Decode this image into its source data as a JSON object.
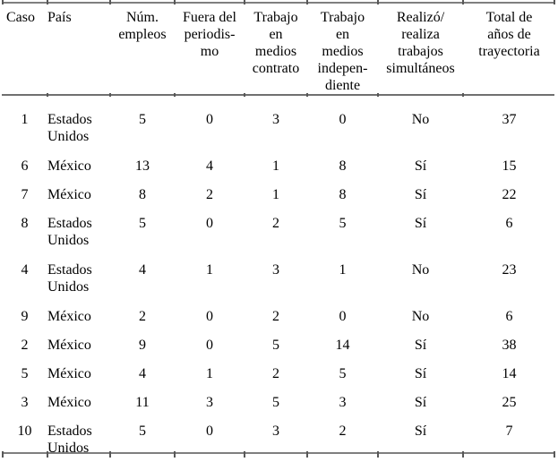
{
  "table": {
    "columns": [
      {
        "id": "caso",
        "label": "Caso"
      },
      {
        "id": "pais",
        "label": "País"
      },
      {
        "id": "num",
        "label": "Núm.\nempleos"
      },
      {
        "id": "fuera",
        "label": "Fuera del\nperiodis-\nmo"
      },
      {
        "id": "contrato",
        "label": "Trabajo\nen\nmedios\ncontrato"
      },
      {
        "id": "indep",
        "label": "Trabajo\nen\nmedios\nindepen-\ndiente"
      },
      {
        "id": "simult",
        "label": "Realizó/\nrealiza\ntrabajos\nsimultáneos"
      },
      {
        "id": "total",
        "label": "Total de\naños de\ntrayectoria"
      }
    ],
    "rows": [
      {
        "caso": "1",
        "pais": "Estados\nUnidos",
        "num": "5",
        "fuera": "0",
        "contrato": "3",
        "indep": "0",
        "simult": "No",
        "total": "37"
      },
      {
        "caso": "6",
        "pais": "México",
        "num": "13",
        "fuera": "4",
        "contrato": "1",
        "indep": "8",
        "simult": "Sí",
        "total": "15"
      },
      {
        "caso": "7",
        "pais": "México",
        "num": "8",
        "fuera": "2",
        "contrato": "1",
        "indep": "8",
        "simult": "Sí",
        "total": "22"
      },
      {
        "caso": "8",
        "pais": "Estados\nUnidos",
        "num": "5",
        "fuera": "0",
        "contrato": "2",
        "indep": "5",
        "simult": "Sí",
        "total": "6"
      },
      {
        "caso": "4",
        "pais": "Estados\nUnidos",
        "num": "4",
        "fuera": "1",
        "contrato": "3",
        "indep": "1",
        "simult": "No",
        "total": "23"
      },
      {
        "caso": "9",
        "pais": "México",
        "num": "2",
        "fuera": "0",
        "contrato": "2",
        "indep": "0",
        "simult": "No",
        "total": "6"
      },
      {
        "caso": "2",
        "pais": "México",
        "num": "9",
        "fuera": "0",
        "contrato": "5",
        "indep": "14",
        "simult": "Sí",
        "total": "38"
      },
      {
        "caso": "5",
        "pais": "México",
        "num": "4",
        "fuera": "1",
        "contrato": "2",
        "indep": "5",
        "simult": "Sí",
        "total": "14"
      },
      {
        "caso": "3",
        "pais": "México",
        "num": "11",
        "fuera": "3",
        "contrato": "5",
        "indep": "3",
        "simult": "Sí",
        "total": "25"
      },
      {
        "caso": "10",
        "pais": "Estados\nUnidos",
        "num": "5",
        "fuera": "0",
        "contrato": "3",
        "indep": "2",
        "simult": "Sí",
        "total": "7"
      }
    ],
    "border_color": "#7f7f7f",
    "text_color": "#000000"
  }
}
